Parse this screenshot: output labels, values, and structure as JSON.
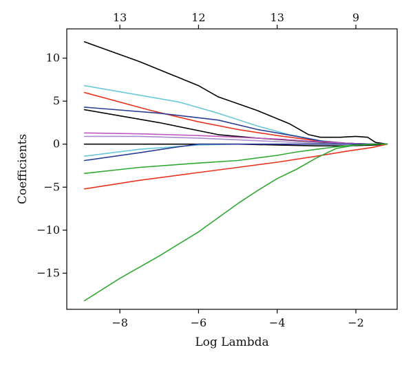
{
  "chart_data": {
    "type": "line",
    "title": "",
    "xlabel": "Log Lambda",
    "ylabel": "Coefficients",
    "xlim": [
      -9.35,
      -0.95
    ],
    "ylim": [
      -19.2,
      13.4
    ],
    "x_ticks": [
      -8,
      -6,
      -4,
      -2
    ],
    "x_tick_labels": [
      "−8",
      "−6",
      "−4",
      "−2"
    ],
    "y_ticks": [
      10,
      5,
      0,
      -5,
      -10,
      -15
    ],
    "y_tick_labels": [
      "10",
      "5",
      "0",
      "−5",
      "−10",
      "−15"
    ],
    "top_axis_ticks": [
      -8,
      -6,
      -4,
      -2
    ],
    "top_axis_labels": [
      "13",
      "12",
      "13",
      "9"
    ],
    "grid": false,
    "series": [
      {
        "color": "#000000",
        "x": [
          -8.9,
          -7.5,
          -6,
          -5.5,
          -4.5,
          -3.7,
          -3.2,
          -2.9,
          -2.4,
          -2.0,
          -1.7,
          -1.5,
          -1.2
        ],
        "values": [
          11.9,
          9.6,
          6.8,
          5.5,
          3.9,
          2.4,
          1.1,
          0.8,
          0.8,
          0.9,
          0.8,
          0.2,
          0.0
        ]
      },
      {
        "color": "#66c8d8",
        "x": [
          -8.9,
          -6.5,
          -5.5,
          -4.5,
          -3.7,
          -2.9,
          -2.2,
          -1.7,
          -1.2
        ],
        "values": [
          6.8,
          4.9,
          3.6,
          2.1,
          1.1,
          0.4,
          0.1,
          0.0,
          0.0
        ]
      },
      {
        "color": "#e8321e",
        "x": [
          -8.9,
          -7.2,
          -6.0,
          -5.0,
          -4.0,
          -3.0,
          -2.2,
          -1.7,
          -1.2
        ],
        "values": [
          6.0,
          3.9,
          2.6,
          1.7,
          1.0,
          0.4,
          0.1,
          0.0,
          0.0
        ]
      },
      {
        "color": "#2a3c94",
        "x": [
          -8.9,
          -7.0,
          -5.5,
          -4.5,
          -3.5,
          -2.8,
          -2.2,
          -1.5,
          -1.2
        ],
        "values": [
          4.3,
          3.6,
          2.8,
          1.7,
          0.9,
          0.3,
          0.1,
          0.0,
          0.0
        ]
      },
      {
        "color": "#000000",
        "x": [
          -8.9,
          -7.0,
          -5.5,
          -4.5,
          -3.5,
          -2.8,
          -2.2,
          -1.5,
          -1.2
        ],
        "values": [
          4.0,
          2.5,
          1.1,
          0.7,
          0.4,
          0.2,
          0.1,
          0.0,
          0.0
        ]
      },
      {
        "color": "#c05ac0",
        "x": [
          -8.9,
          -7.5,
          -6.0,
          -5.0,
          -4.0,
          -3.0,
          -2.2,
          -1.5,
          -1.2
        ],
        "values": [
          1.3,
          1.2,
          1.0,
          0.8,
          0.6,
          0.3,
          0.1,
          0.0,
          0.0
        ]
      },
      {
        "color": "#a88cd0",
        "x": [
          -8.9,
          -7.5,
          -6.0,
          -5.0,
          -4.0,
          -3.0,
          -2.2,
          -1.5,
          -1.2
        ],
        "values": [
          0.9,
          0.9,
          0.7,
          0.5,
          0.3,
          0.1,
          0.0,
          0.0,
          0.0
        ]
      },
      {
        "color": "#000000",
        "x": [
          -8.9,
          -7.5,
          -6.0,
          -5.0,
          -4.0,
          -3.0,
          -2.2,
          -1.5,
          -1.2
        ],
        "values": [
          0.0,
          0.0,
          0.0,
          0.0,
          -0.1,
          -0.2,
          -0.2,
          -0.1,
          0.0
        ]
      },
      {
        "color": "#66c8d8",
        "x": [
          -8.9,
          -7.5,
          -6.0,
          -5.0,
          -4.0,
          -3.0,
          -2.2,
          -1.5,
          -1.2
        ],
        "values": [
          -1.4,
          -0.6,
          -0.1,
          0.0,
          0.0,
          0.0,
          0.0,
          0.0,
          0.0
        ]
      },
      {
        "color": "#2a3c94",
        "x": [
          -8.9,
          -7.5,
          -6.5,
          -6.0,
          -5.0,
          -4.0,
          -3.0,
          -2.2,
          -1.2
        ],
        "values": [
          -1.9,
          -1.0,
          -0.3,
          0.0,
          0.0,
          0.0,
          0.0,
          0.0,
          0.0
        ]
      },
      {
        "color": "#30a830",
        "x": [
          -8.9,
          -7.5,
          -6.0,
          -5.0,
          -4.0,
          -3.5,
          -3.0,
          -2.5,
          -2.0,
          -1.5,
          -1.2
        ],
        "values": [
          -3.4,
          -2.7,
          -2.2,
          -1.9,
          -1.3,
          -0.9,
          -0.6,
          -0.3,
          -0.1,
          0.0,
          0.0
        ]
      },
      {
        "color": "#e8321e",
        "x": [
          -8.9,
          -7.5,
          -6.0,
          -5.0,
          -4.0,
          -3.0,
          -2.2,
          -1.6,
          -1.2
        ],
        "values": [
          -5.2,
          -4.2,
          -3.3,
          -2.7,
          -2.1,
          -1.4,
          -0.8,
          -0.4,
          0.0
        ]
      },
      {
        "color": "#30a830",
        "x": [
          -8.9,
          -8.0,
          -7.0,
          -6.0,
          -5.0,
          -4.5,
          -4.0,
          -3.5,
          -3.0,
          -2.5,
          -2.0,
          -1.5,
          -1.2
        ],
        "values": [
          -18.2,
          -15.6,
          -13.0,
          -10.2,
          -6.9,
          -5.4,
          -4.0,
          -2.9,
          -1.6,
          -0.5,
          -0.1,
          0.0,
          0.0
        ]
      }
    ]
  }
}
